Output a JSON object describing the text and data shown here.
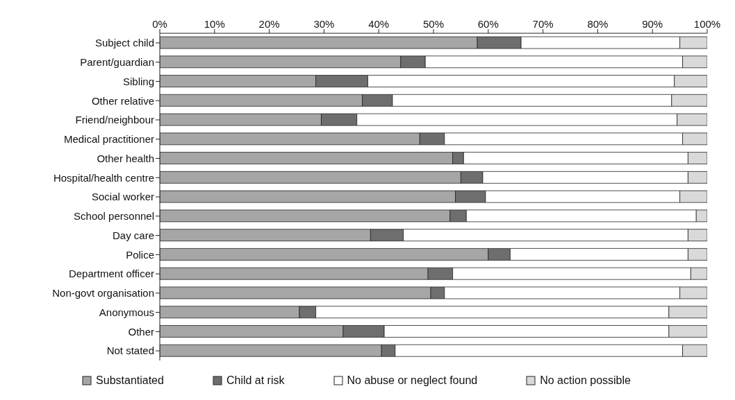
{
  "chart_data": {
    "type": "bar",
    "orientation": "horizontal",
    "stacked": true,
    "categories": [
      "Subject child",
      "Parent/guardian",
      "Sibling",
      "Other relative",
      "Friend/neighbour",
      "Medical practitioner",
      "Other health",
      "Hospital/health centre",
      "Social worker",
      "School personnel",
      "Day care",
      "Police",
      "Department officer",
      "Non-govt organisation",
      "Anonymous",
      "Other",
      "Not stated"
    ],
    "series": [
      {
        "name": "Substantiated",
        "color": "#a6a6a6",
        "values": [
          58,
          44,
          28.5,
          37,
          29.5,
          47.5,
          53.5,
          55,
          54,
          53,
          38.5,
          60,
          49,
          49.5,
          25.5,
          33.5,
          40.5
        ]
      },
      {
        "name": "Child at risk",
        "color": "#6e6e6e",
        "values": [
          8,
          4.5,
          9.5,
          5.5,
          6.5,
          4.5,
          2,
          4,
          5.5,
          3,
          6,
          4,
          4.5,
          2.5,
          3,
          7.5,
          2.5
        ]
      },
      {
        "name": "No abuse or neglect found",
        "color": "#ffffff",
        "values": [
          29,
          47,
          56,
          51,
          58.5,
          43.5,
          41,
          37.5,
          35.5,
          42,
          52,
          32.5,
          43.5,
          43,
          64.5,
          52,
          52.5
        ]
      },
      {
        "name": "No action possible",
        "color": "#d9d9d9",
        "values": [
          5,
          4.5,
          6,
          6.5,
          5.5,
          4.5,
          3.5,
          3.5,
          5,
          2,
          3.5,
          3.5,
          3,
          5,
          7,
          7,
          4.5
        ]
      }
    ],
    "xlim": [
      0,
      100
    ],
    "xticks": [
      {
        "value": 0,
        "label": "0%"
      },
      {
        "value": 10,
        "label": "10%"
      },
      {
        "value": 20,
        "label": "20%"
      },
      {
        "value": 30,
        "label": "30%"
      },
      {
        "value": 40,
        "label": "40%"
      },
      {
        "value": 50,
        "label": "50%"
      },
      {
        "value": 60,
        "label": "60%"
      },
      {
        "value": 70,
        "label": "70%"
      },
      {
        "value": 80,
        "label": "80%"
      },
      {
        "value": 90,
        "label": "90%"
      },
      {
        "value": 100,
        "label": "100%"
      }
    ],
    "grid": false,
    "legend": "bottom"
  }
}
